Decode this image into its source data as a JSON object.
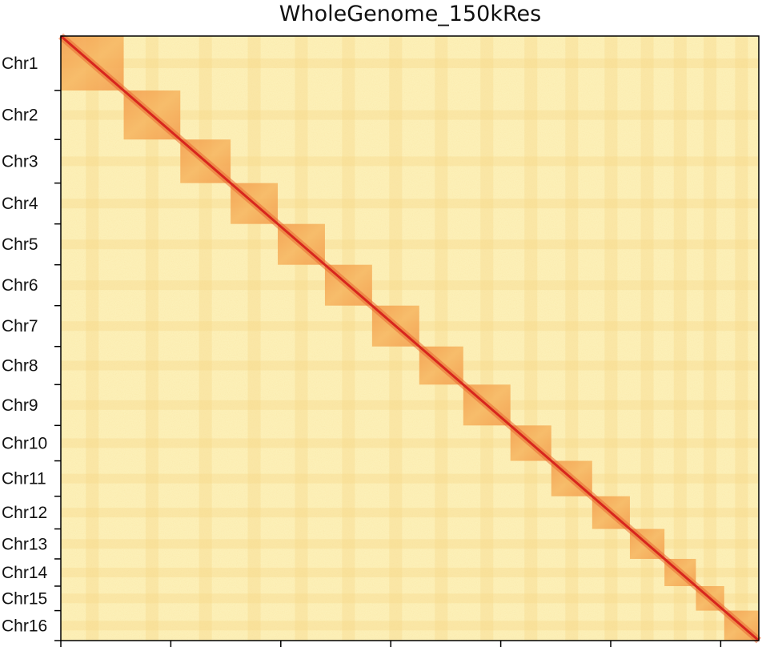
{
  "chart_data": {
    "type": "heatmap",
    "title": "WholeGenome_150kRes",
    "description_colormap": [
      "#fcf0b8",
      "#f6d787",
      "#f4a24e",
      "#ea6a33",
      "#d7261d"
    ],
    "chromosomes": [
      {
        "label": "Chr1",
        "bins": 20
      },
      {
        "label": "Chr2",
        "bins": 18
      },
      {
        "label": "Chr3",
        "bins": 16
      },
      {
        "label": "Chr4",
        "bins": 15
      },
      {
        "label": "Chr5",
        "bins": 15
      },
      {
        "label": "Chr6",
        "bins": 15
      },
      {
        "label": "Chr7",
        "bins": 15
      },
      {
        "label": "Chr8",
        "bins": 14
      },
      {
        "label": "Chr9",
        "bins": 15
      },
      {
        "label": "Chr10",
        "bins": 13
      },
      {
        "label": "Chr11",
        "bins": 13
      },
      {
        "label": "Chr12",
        "bins": 12
      },
      {
        "label": "Chr13",
        "bins": 11
      },
      {
        "label": "Chr14",
        "bins": 10
      },
      {
        "label": "Chr15",
        "bins": 9
      },
      {
        "label": "Chr16",
        "bins": 11
      }
    ],
    "x_tick_count": 7,
    "x_tick_labels": [],
    "colorbar": false
  }
}
